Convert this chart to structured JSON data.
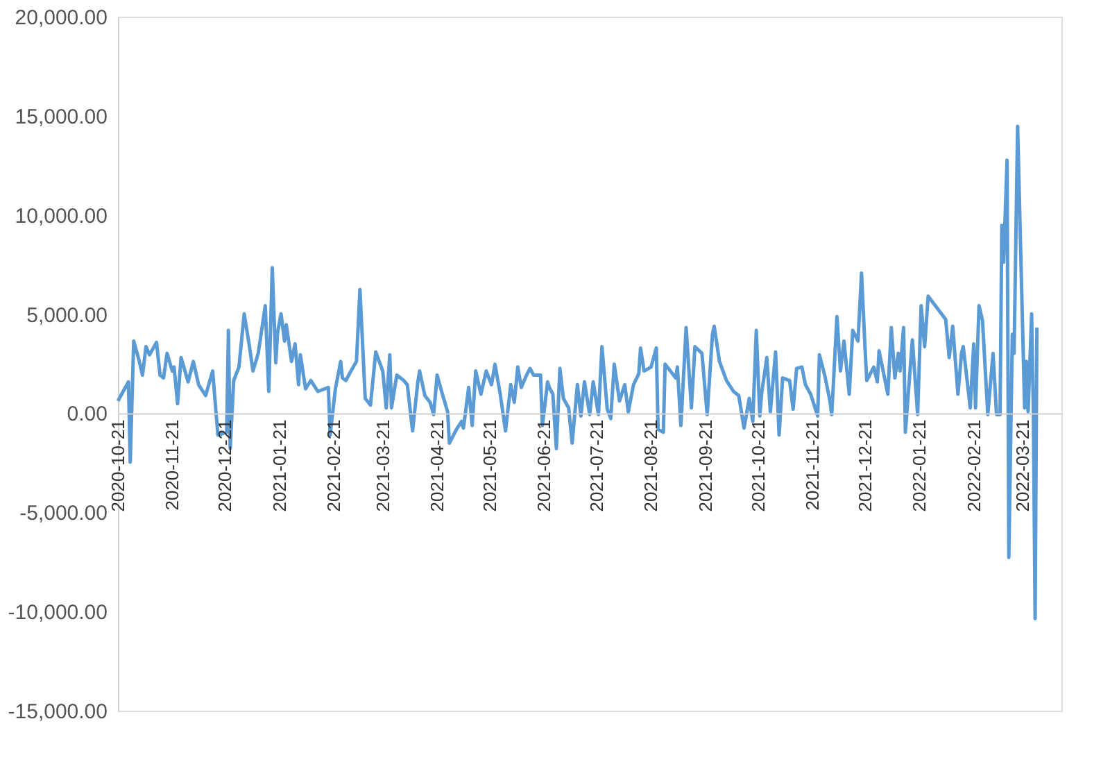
{
  "chart_data": {
    "type": "line",
    "x": [
      "2020-10-21",
      "2020-10-27",
      "2020-10-28",
      "2020-10-30",
      "2020-11-02",
      "2020-11-04",
      "2020-11-06",
      "2020-11-08",
      "2020-11-12",
      "2020-11-14",
      "2020-11-16",
      "2020-11-18",
      "2020-11-21",
      "2020-11-22",
      "2020-11-24",
      "2020-11-26",
      "2020-11-30",
      "2020-12-03",
      "2020-12-06",
      "2020-12-10",
      "2020-12-14",
      "2020-12-17",
      "2020-12-22",
      "2020-12-23",
      "2020-12-24",
      "2020-12-26",
      "2020-12-29",
      "2021-01-01",
      "2021-01-04",
      "2021-01-06",
      "2021-01-09",
      "2021-01-13",
      "2021-01-15",
      "2021-01-17",
      "2021-01-19",
      "2021-01-20",
      "2021-01-22",
      "2021-01-24",
      "2021-01-25",
      "2021-01-28",
      "2021-01-30",
      "2021-02-01",
      "2021-02-02",
      "2021-02-05",
      "2021-02-08",
      "2021-02-12",
      "2021-02-18",
      "2021-02-19",
      "2021-02-22",
      "2021-02-25",
      "2021-02-26",
      "2021-02-28",
      "2021-03-02",
      "2021-03-06",
      "2021-03-08",
      "2021-03-11",
      "2021-03-14",
      "2021-03-17",
      "2021-03-21",
      "2021-03-23",
      "2021-03-25",
      "2021-03-26",
      "2021-03-29",
      "2021-04-02",
      "2021-04-04",
      "2021-04-07",
      "2021-04-10",
      "2021-04-11",
      "2021-04-14",
      "2021-04-17",
      "2021-04-19",
      "2021-04-21",
      "2021-04-24",
      "2021-04-27",
      "2021-04-28",
      "2021-05-02",
      "2021-05-05",
      "2021-05-06",
      "2021-05-09",
      "2021-05-11",
      "2021-05-13",
      "2021-05-16",
      "2021-05-19",
      "2021-05-22",
      "2021-05-24",
      "2021-05-27",
      "2021-05-30",
      "2021-06-02",
      "2021-06-04",
      "2021-06-06",
      "2021-06-08",
      "2021-06-11",
      "2021-06-13",
      "2021-06-15",
      "2021-06-19",
      "2021-06-20",
      "2021-06-23",
      "2021-06-24",
      "2021-06-26",
      "2021-06-28",
      "2021-06-30",
      "2021-07-02",
      "2021-07-05",
      "2021-07-07",
      "2021-07-10",
      "2021-07-12",
      "2021-07-14",
      "2021-07-17",
      "2021-07-19",
      "2021-07-22",
      "2021-07-24",
      "2021-07-27",
      "2021-07-29",
      "2021-07-31",
      "2021-08-03",
      "2021-08-06",
      "2021-08-08",
      "2021-08-11",
      "2021-08-14",
      "2021-08-15",
      "2021-08-17",
      "2021-08-21",
      "2021-08-24",
      "2021-08-25",
      "2021-08-28",
      "2021-08-29",
      "2021-09-01",
      "2021-09-04",
      "2021-09-05",
      "2021-09-07",
      "2021-09-10",
      "2021-09-13",
      "2021-09-15",
      "2021-09-19",
      "2021-09-22",
      "2021-09-25",
      "2021-09-26",
      "2021-09-29",
      "2021-10-03",
      "2021-10-07",
      "2021-10-10",
      "2021-10-13",
      "2021-10-16",
      "2021-10-18",
      "2021-10-20",
      "2021-10-22",
      "2021-10-23",
      "2021-10-26",
      "2021-10-28",
      "2021-10-31",
      "2021-11-02",
      "2021-11-04",
      "2021-11-08",
      "2021-11-10",
      "2021-11-12",
      "2021-11-15",
      "2021-11-17",
      "2021-11-20",
      "2021-11-24",
      "2021-11-25",
      "2021-11-28",
      "2021-12-01",
      "2021-12-02",
      "2021-12-05",
      "2021-12-07",
      "2021-12-09",
      "2021-12-12",
      "2021-12-14",
      "2021-12-17",
      "2021-12-19",
      "2021-12-21",
      "2021-12-22",
      "2021-12-26",
      "2021-12-28",
      "2021-12-29",
      "2022-01-03",
      "2022-01-05",
      "2022-01-07",
      "2022-01-09",
      "2022-01-10",
      "2022-01-12",
      "2022-01-13",
      "2022-01-17",
      "2022-01-20",
      "2022-01-22",
      "2022-01-24",
      "2022-01-26",
      "2022-02-05",
      "2022-02-07",
      "2022-02-09",
      "2022-02-12",
      "2022-02-14",
      "2022-02-15",
      "2022-02-19",
      "2022-02-21",
      "2022-02-22",
      "2022-02-24",
      "2022-02-26",
      "2022-03-01",
      "2022-03-04",
      "2022-03-06",
      "2022-03-08",
      "2022-03-09",
      "2022-03-10",
      "2022-03-12",
      "2022-03-13",
      "2022-03-15",
      "2022-03-16",
      "2022-03-18",
      "2022-03-22",
      "2022-03-23",
      "2022-03-24",
      "2022-03-26",
      "2022-03-27",
      "2022-03-28",
      "2022-03-29"
    ],
    "series": [
      {
        "color": "#5b9bd5",
        "values": [
          620,
          1580,
          -2470,
          3640,
          2680,
          1920,
          3360,
          2950,
          3570,
          1920,
          1780,
          3020,
          2130,
          2330,
          480,
          2810,
          1580,
          2610,
          1440,
          890,
          2130,
          -1100,
          -960,
          4180,
          -1780,
          1650,
          2330,
          5010,
          3360,
          2130,
          3020,
          5420,
          1100,
          7340,
          2540,
          4050,
          5010,
          3640,
          4460,
          2610,
          3500,
          1440,
          2950,
          1230,
          1650,
          1100,
          1300,
          -1100,
          1230,
          2610,
          1780,
          1650,
          1990,
          2610,
          6240,
          750,
          410,
          3090,
          2130,
          270,
          2950,
          270,
          1920,
          1650,
          1440,
          -890,
          1580,
          2130,
          890,
          550,
          -70,
          1920,
          960,
          70,
          -1510,
          -820,
          -410,
          -750,
          1300,
          -620,
          2130,
          960,
          2130,
          1440,
          2470,
          960,
          -890,
          1440,
          550,
          2330,
          1300,
          1920,
          2260,
          1920,
          1920,
          -620,
          1580,
          1300,
          960,
          -1780,
          2260,
          750,
          270,
          -1510,
          1440,
          -140,
          1580,
          -70,
          1580,
          -70,
          3360,
          210,
          -270,
          2470,
          620,
          1440,
          70,
          1440,
          1990,
          3290,
          2130,
          2330,
          3290,
          -820,
          -960,
          2470,
          2130,
          1780,
          2330,
          -620,
          4320,
          270,
          3360,
          3020,
          -70,
          3980,
          4390,
          2610,
          1650,
          1100,
          890,
          -750,
          750,
          -410,
          4180,
          -140,
          960,
          2810,
          70,
          3090,
          -1100,
          1780,
          1650,
          210,
          2260,
          2330,
          1440,
          960,
          -140,
          2950,
          1920,
          620,
          -70,
          4870,
          2130,
          3640,
          960,
          4180,
          3640,
          7070,
          3290,
          1650,
          2330,
          1580,
          3150,
          960,
          4320,
          1780,
          3020,
          2130,
          4320,
          -960,
          3700,
          -70,
          5420,
          3360,
          5900,
          4730,
          2810,
          4390,
          960,
          3020,
          3360,
          270,
          3500,
          270,
          5420,
          4660,
          -70,
          3020,
          -70,
          -70,
          9470,
          7610,
          12760,
          -7270,
          3980,
          3020,
          14470,
          270,
          2610,
          70,
          5010,
          70,
          -10360,
          4320
        ]
      }
    ],
    "xlim": [
      "2020-10-21",
      "2022-04-12"
    ],
    "xticks": [
      "2020-10-21",
      "2020-11-21",
      "2020-12-21",
      "2021-01-21",
      "2021-02-21",
      "2021-03-21",
      "2021-04-21",
      "2021-05-21",
      "2021-06-21",
      "2021-07-21",
      "2021-08-21",
      "2021-09-21",
      "2021-10-21",
      "2021-11-21",
      "2021-12-21",
      "2022-01-21",
      "2022-02-21",
      "2022-03-21"
    ],
    "ylim": [
      -15000,
      20000
    ],
    "yticks": [
      {
        "value": -15000,
        "label": "-15,000.00"
      },
      {
        "value": -10000,
        "label": "-10,000.00"
      },
      {
        "value": -5000,
        "label": "-5,000.00"
      },
      {
        "value": 0,
        "label": "0.00"
      },
      {
        "value": 5000,
        "label": "5,000.00"
      },
      {
        "value": 10000,
        "label": "10,000.00"
      },
      {
        "value": 15000,
        "label": "15,000.00"
      },
      {
        "value": 20000,
        "label": "20,000.00"
      }
    ],
    "grid": false
  }
}
